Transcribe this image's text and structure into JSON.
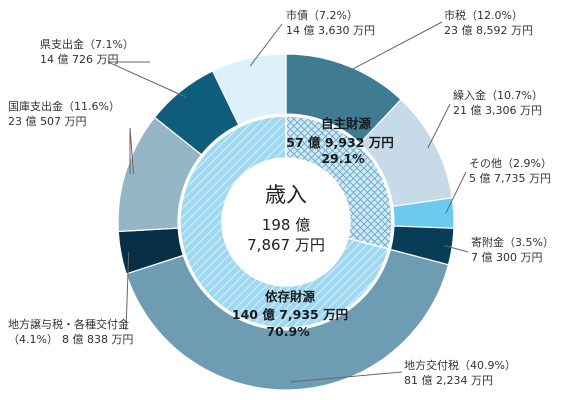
{
  "chart_data": {
    "type": "pie",
    "center": {
      "title": "歳入",
      "line1": "198 億",
      "line2": "7,867 万円"
    },
    "outer": [
      {
        "name": "市税",
        "pct_label": "（12.0%）",
        "amount": "23 億 8,592 万円",
        "value": 12.0,
        "color": "#3f7b93"
      },
      {
        "name": "繰入金",
        "pct_label": "（10.7%）",
        "amount": "21 億 3,306 万円",
        "value": 10.7,
        "color": "#c6dbe7"
      },
      {
        "name": "その他",
        "pct_label": "（2.9%）",
        "amount": "5 億 7,735 万円",
        "value": 2.9,
        "color": "#6cc9ef"
      },
      {
        "name": "寄附金",
        "pct_label": "（3.5%）",
        "amount": "7 億 300 万円",
        "value": 3.5,
        "color": "#083c57"
      },
      {
        "name": "地方交付税",
        "pct_label": "（40.9%）",
        "amount": "81 億 2,234 万円",
        "value": 40.9,
        "color": "#6e9cb2"
      },
      {
        "name": "地方譲与税・各種交付金",
        "pct_label": "（4.1%）",
        "amount": "8 億 838 万円",
        "value": 4.1,
        "color": "#062e46"
      },
      {
        "name": "国庫支出金",
        "pct_label": "（11.6%）",
        "amount": "23 億 507 万円",
        "value": 11.6,
        "color": "#94b6c7"
      },
      {
        "name": "県支出金",
        "pct_label": "（7.1%）",
        "amount": "14 億 726 万円",
        "value": 7.1,
        "color": "#0e5d7a"
      },
      {
        "name": "市債",
        "pct_label": "（7.2%）",
        "amount": "14 億 3,630 万円",
        "value": 7.2,
        "color": "#dcf0fa"
      }
    ],
    "inner": [
      {
        "name": "自主財源",
        "amount": "57 億 9,932 万円",
        "pct": "29.1%",
        "value": 29.1
      },
      {
        "name": "依存財源",
        "amount": "140 億 7,935 万円",
        "pct": "70.9%",
        "value": 70.9
      }
    ]
  }
}
